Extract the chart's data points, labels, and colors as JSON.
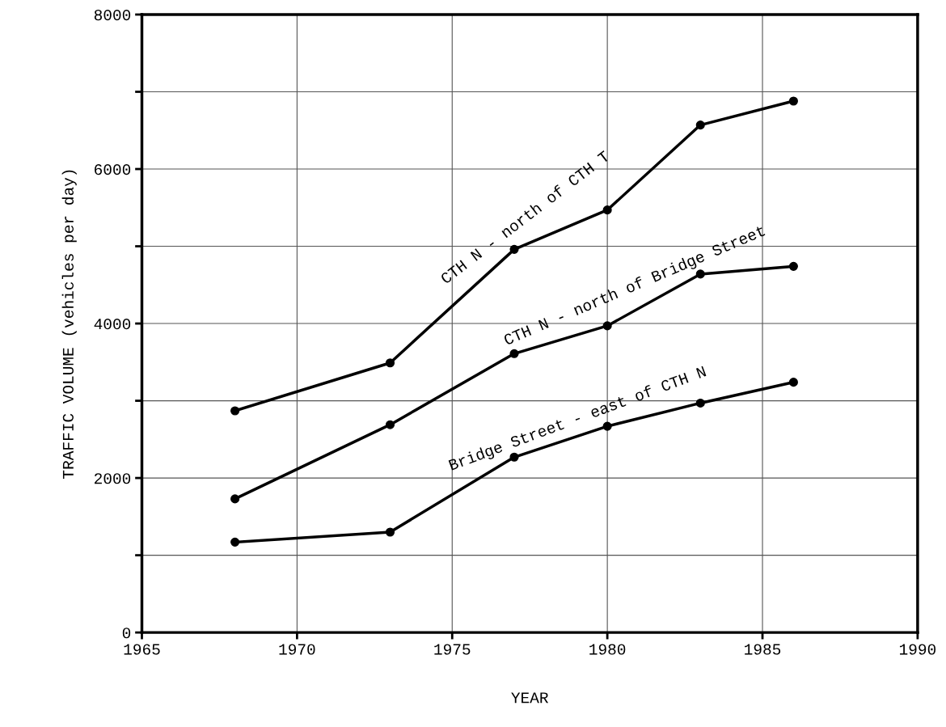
{
  "chart_data": {
    "type": "line",
    "xlabel": "YEAR",
    "ylabel": "TRAFFIC VOLUME (vehicles per day)",
    "x": [
      1968,
      1973,
      1977,
      1980,
      1983,
      1986
    ],
    "series": [
      {
        "name": "CTH N - north of CTH T",
        "color": "#000000",
        "values": [
          2870,
          3490,
          4960,
          5470,
          6570,
          6880
        ]
      },
      {
        "name": "CTH N - north of Bridge Street",
        "color": "#000000",
        "values": [
          1730,
          2690,
          3610,
          3970,
          4640,
          4740
        ]
      },
      {
        "name": "Bridge Street - east of CTH N",
        "color": "#000000",
        "values": [
          1170,
          1300,
          2270,
          2670,
          2970,
          3240
        ]
      }
    ],
    "xlim": [
      1965,
      1990
    ],
    "xticks": [
      1965,
      1970,
      1975,
      1980,
      1985,
      1990
    ],
    "ylim": [
      0,
      8000
    ],
    "yticks": [
      0,
      {
        "value": 1000,
        "label": null
      },
      2000,
      {
        "value": 3000,
        "label": null
      },
      4000,
      {
        "value": 5000,
        "label": null
      },
      6000,
      {
        "value": 7000,
        "label": null
      },
      8000
    ],
    "grid": true,
    "marker": "circle",
    "line_style": "solid",
    "legend": false
  }
}
